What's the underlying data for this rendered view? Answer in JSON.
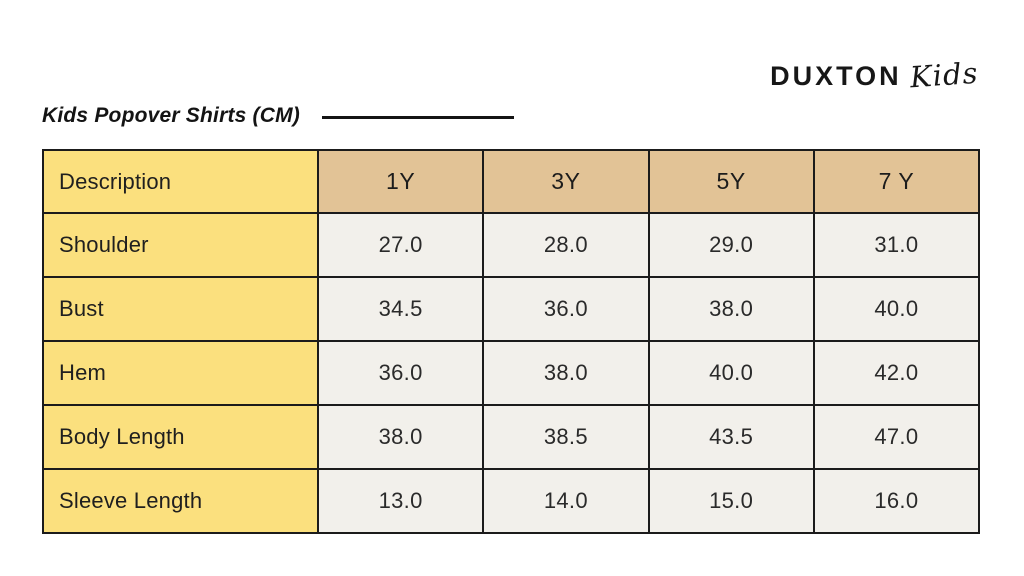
{
  "brand": {
    "name": "DUXTON",
    "script": "Kids"
  },
  "title": "Kids Popover Shirts (CM)",
  "chart_data": {
    "type": "table",
    "title": "Kids Popover Shirts (CM)",
    "unit": "CM",
    "columns": [
      "Description",
      "1Y",
      "3Y",
      "5Y",
      "7 Y"
    ],
    "rows": [
      {
        "label": "Shoulder",
        "values": [
          "27.0",
          "28.0",
          "29.0",
          "31.0"
        ]
      },
      {
        "label": "Bust",
        "values": [
          "34.5",
          "36.0",
          "38.0",
          "40.0"
        ]
      },
      {
        "label": "Hem",
        "values": [
          "36.0",
          "38.0",
          "40.0",
          "42.0"
        ]
      },
      {
        "label": "Body Length",
        "values": [
          "38.0",
          "38.5",
          "43.5",
          "47.0"
        ]
      },
      {
        "label": "Sleeve Length",
        "values": [
          "13.0",
          "14.0",
          "15.0",
          "16.0"
        ]
      }
    ]
  },
  "colors": {
    "label_bg": "#FBE07E",
    "size_header_bg": "#E2C396",
    "value_bg": "#F2F0EB",
    "border": "#1B1B1B",
    "text": "#222222",
    "page_bg": "#FFFFFF"
  }
}
